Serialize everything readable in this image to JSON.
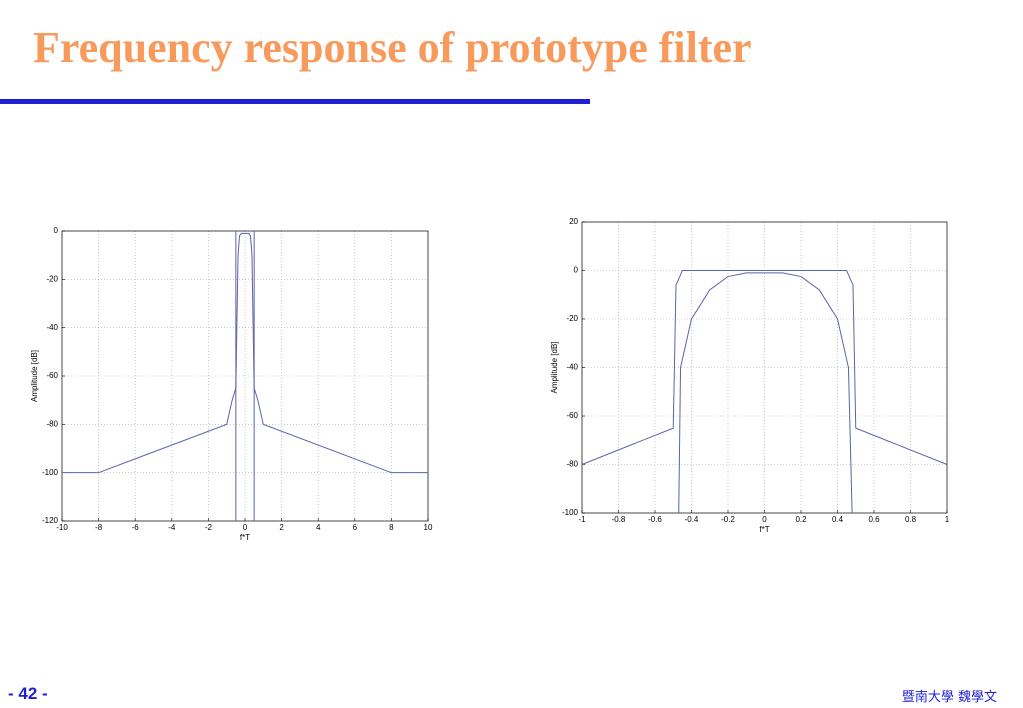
{
  "header": {
    "title": "Frequency response of prototype filter"
  },
  "chart_data": [
    {
      "type": "line",
      "xlabel": "f*T",
      "ylabel": "Amplitude [dB]",
      "xlim": [
        -10,
        10
      ],
      "xticks": [
        -10,
        -8,
        -6,
        -4,
        -2,
        0,
        2,
        4,
        6,
        8,
        10
      ],
      "ylim": [
        -120,
        0
      ],
      "yticks": [
        -120,
        -100,
        -80,
        -60,
        -40,
        -20,
        0
      ],
      "grid": true,
      "series": [
        {
          "color": "#5a64a8",
          "x": [
            -10,
            -8,
            -1,
            -0.7,
            -0.5,
            -0.38,
            -0.3,
            -0.2,
            0,
            0.2,
            0.3,
            0.38,
            0.5,
            0.7,
            1,
            8,
            10
          ],
          "values": [
            -100,
            -100,
            -80,
            -70,
            -65,
            -10,
            -2,
            -1,
            -1,
            -1,
            -2,
            -10,
            -65,
            -70,
            -80,
            -100,
            -100
          ]
        },
        {
          "color": "#5a64a8",
          "x": [
            -0.5,
            -0.5,
            null,
            0.5,
            0.5
          ],
          "values": [
            -120,
            0,
            null,
            0,
            -120
          ]
        }
      ]
    },
    {
      "type": "line",
      "xlabel": "f*T",
      "ylabel": "Amplitude [dB]",
      "xlim": [
        -1,
        1
      ],
      "xticks": [
        -1,
        -0.8,
        -0.6,
        -0.4,
        -0.2,
        0,
        0.2,
        0.4,
        0.6,
        0.8,
        1
      ],
      "ylim": [
        -100,
        20
      ],
      "yticks": [
        -100,
        -80,
        -60,
        -40,
        -20,
        0,
        20
      ],
      "grid": true,
      "series": [
        {
          "color": "#5a64a8",
          "x": [
            -1,
            -0.5,
            -0.485,
            -0.45,
            0.45,
            0.485,
            0.5,
            1
          ],
          "values": [
            -80,
            -65,
            -6,
            0,
            0,
            -6,
            -65,
            -80
          ]
        },
        {
          "color": "#5a64a8",
          "x": [
            -0.47,
            -0.46,
            -0.4,
            -0.3,
            -0.2,
            -0.1,
            0,
            0.1,
            0.2,
            0.3,
            0.4,
            0.46,
            0.48
          ],
          "values": [
            -100,
            -40,
            -20,
            -8,
            -2.5,
            -1,
            -1,
            -1,
            -2.5,
            -8,
            -20,
            -40,
            -100
          ]
        }
      ]
    }
  ],
  "footer": {
    "page": "- 42 -",
    "author": "暨南大學 魏學文"
  }
}
